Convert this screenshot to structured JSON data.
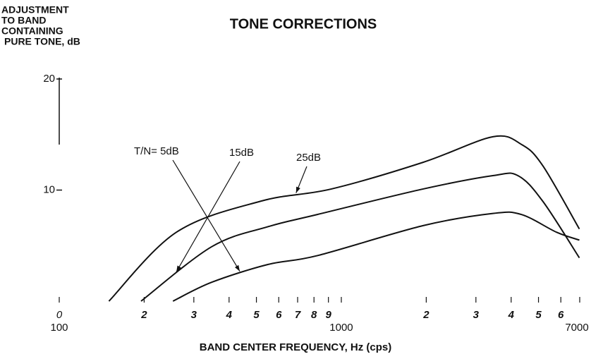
{
  "chart_data": {
    "type": "line",
    "title": "TONE CORRECTIONS",
    "ylabel": [
      "ADJUSTMENT",
      "TO BAND",
      "CONTAINING",
      "PURE TONE, dB"
    ],
    "xlabel": "BAND CENTER FREQUENCY, Hz (cps)",
    "xscale": "log",
    "xlim": [
      100,
      7000
    ],
    "ylim": [
      0,
      20
    ],
    "yticks": [
      0,
      10,
      20
    ],
    "xticks": [
      100,
      {
        "value": 200,
        "label": "2"
      },
      {
        "value": 300,
        "label": "3"
      },
      {
        "value": 400,
        "label": "4"
      },
      {
        "value": 500,
        "label": "5"
      },
      {
        "value": 600,
        "label": "6"
      },
      {
        "value": 700,
        "label": "7"
      },
      {
        "value": 800,
        "label": "8"
      },
      {
        "value": 900,
        "label": "9"
      },
      1000,
      {
        "value": 2000,
        "label": "2"
      },
      {
        "value": 3000,
        "label": "3"
      },
      {
        "value": 4000,
        "label": "4"
      },
      {
        "value": 5000,
        "label": "5"
      },
      {
        "value": 6000,
        "label": "6"
      },
      7000
    ],
    "grid": false,
    "series": [
      {
        "name": "T/N= 5dB",
        "color": "#111111",
        "x": [
          253,
          347,
          549,
          822,
          1950,
          3446,
          4355,
          5799,
          6980
        ],
        "values": [
          0,
          1.7,
          3.3,
          4.1,
          6.8,
          7.9,
          7.8,
          6.2,
          5.5
        ]
      },
      {
        "name": "15dB",
        "color": "#111111",
        "x": [
          195,
          347,
          549,
          822,
          1950,
          3446,
          4227,
          5176,
          6980
        ],
        "values": [
          0,
          4.9,
          6.7,
          7.8,
          10.1,
          11.3,
          11.3,
          9.0,
          3.9
        ]
      },
      {
        "name": "25dB",
        "color": "#111111",
        "x": [
          150,
          260,
          518,
          922,
          1950,
          3446,
          4355,
          5176,
          6980
        ],
        "values": [
          0,
          6.2,
          9.0,
          10.1,
          12.5,
          14.8,
          14.1,
          12.2,
          6.5
        ]
      }
    ]
  }
}
